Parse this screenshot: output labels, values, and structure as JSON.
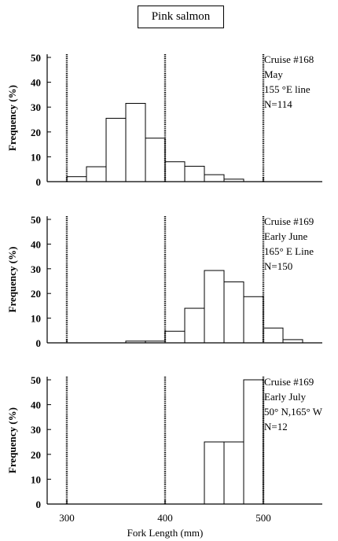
{
  "title": "Pink salmon",
  "x_axis": {
    "label": "Fork Length (mm)",
    "ticks": [
      300,
      400,
      500
    ],
    "range": [
      280,
      560
    ]
  },
  "chart_data": [
    {
      "type": "bar",
      "name": "cruise-168",
      "annotation": [
        "Cruise #168",
        "May",
        "155 °E line",
        "N=114"
      ],
      "bin_width": 20,
      "bins": [
        {
          "x0": 300,
          "value": 2
        },
        {
          "x0": 320,
          "value": 6
        },
        {
          "x0": 340,
          "value": 25.5
        },
        {
          "x0": 360,
          "value": 31.5
        },
        {
          "x0": 380,
          "value": 17.5
        },
        {
          "x0": 400,
          "value": 8
        },
        {
          "x0": 420,
          "value": 6.2
        },
        {
          "x0": 440,
          "value": 2.8
        },
        {
          "x0": 460,
          "value": 1
        }
      ],
      "ylabel": "Frequency (%)",
      "yticks": [
        0,
        10,
        20,
        30,
        40,
        50
      ],
      "ylim": [
        0,
        50
      ],
      "vlines": [
        300,
        400,
        500
      ]
    },
    {
      "type": "bar",
      "name": "cruise-169-june",
      "annotation": [
        "Cruise #169",
        "Early June",
        "165° E Line",
        "N=150"
      ],
      "bin_width": 20,
      "bins": [
        {
          "x0": 360,
          "value": 0.7
        },
        {
          "x0": 380,
          "value": 0.7
        },
        {
          "x0": 400,
          "value": 4.7
        },
        {
          "x0": 420,
          "value": 14
        },
        {
          "x0": 440,
          "value": 29.3
        },
        {
          "x0": 460,
          "value": 24.7
        },
        {
          "x0": 480,
          "value": 18.7
        },
        {
          "x0": 500,
          "value": 6
        },
        {
          "x0": 520,
          "value": 1.3
        }
      ],
      "ylabel": "Frequency (%)",
      "yticks": [
        0,
        10,
        20,
        30,
        40,
        50
      ],
      "ylim": [
        0,
        50
      ],
      "vlines": [
        300,
        400,
        500
      ]
    },
    {
      "type": "bar",
      "name": "cruise-169-july",
      "annotation": [
        "Cruise #169",
        "Early July",
        "50° N,165° W",
        "N=12"
      ],
      "bin_width": 20,
      "bins": [
        {
          "x0": 440,
          "value": 25
        },
        {
          "x0": 460,
          "value": 25
        },
        {
          "x0": 480,
          "value": 50
        }
      ],
      "ylabel": "Frequency (%)",
      "yticks": [
        0,
        10,
        20,
        30,
        40,
        50
      ],
      "ylim": [
        0,
        50
      ],
      "vlines": [
        300,
        400,
        500
      ]
    }
  ]
}
